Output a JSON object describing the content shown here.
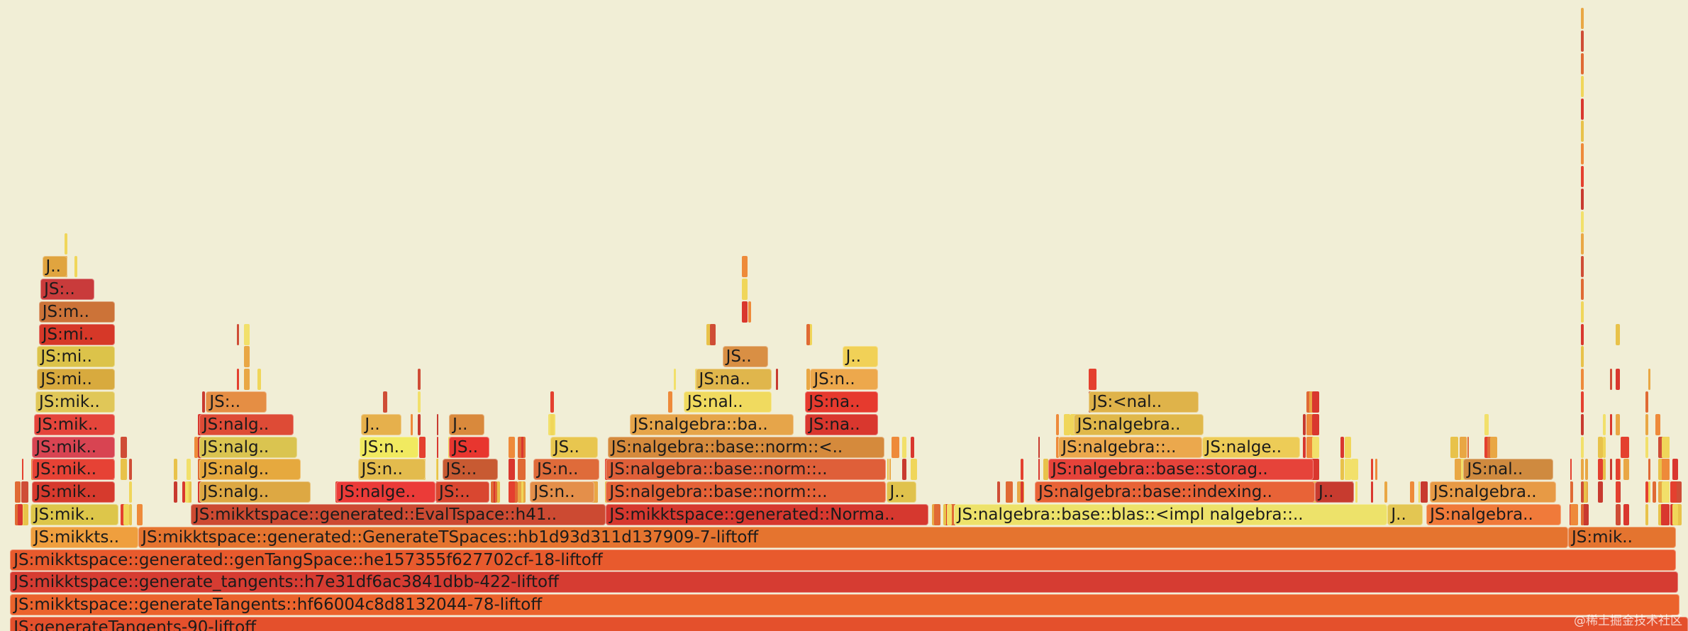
{
  "chart_data": {
    "type": "flamegraph",
    "title": "",
    "orientation": "icicle-bottom-up",
    "frames": [
      {
        "depth": 0,
        "start": 0.006,
        "end": 1.0,
        "label": "JS:generateTangents-90-liftoff",
        "color": "#e4502c"
      },
      {
        "depth": 1,
        "start": 0.006,
        "end": 0.995,
        "label": "JS:mikktspace::generateTangents::hf66004c8d8132044-78-liftoff",
        "color": "#eb632c"
      },
      {
        "depth": 2,
        "start": 0.006,
        "end": 0.994,
        "label": "JS:mikktspace::generate_tangents::h7e31df6ac3841dbb-422-liftoff",
        "color": "#d63c32"
      },
      {
        "depth": 3,
        "start": 0.006,
        "end": 0.993,
        "label": "JS:mikktspace::generated::genTangSpace::he157355f627702cf-18-liftoff",
        "color": "#e85a2d"
      },
      {
        "depth": 4,
        "start": 0.018,
        "end": 0.082,
        "label": "JS:mikkts..",
        "color": "#ef9f3e"
      },
      {
        "depth": 4,
        "start": 0.082,
        "end": 0.929,
        "label": "JS:mikktspace::generated::GenerateTSpaces::hb1d93d311d137909-7-liftoff",
        "color": "#e5742f"
      },
      {
        "depth": 4,
        "start": 0.929,
        "end": 0.993,
        "label": "JS:mik..",
        "color": "#e4742f"
      },
      {
        "depth": 5,
        "start": 0.018,
        "end": 0.07,
        "label": "JS:mik..",
        "color": "#ddc64a"
      },
      {
        "depth": 5,
        "start": 0.113,
        "end": 0.359,
        "label": "JS:mikktspace::generated::EvalTspace::h41..",
        "color": "#cc4a32"
      },
      {
        "depth": 5,
        "start": 0.359,
        "end": 0.55,
        "label": "JS:mikktspace::generated::Norma..",
        "color": "#d6382f"
      },
      {
        "depth": 5,
        "start": 0.565,
        "end": 0.822,
        "label": "JS:nalgebra::base::blas::<impl nalgebra::..",
        "color": "#ede26a"
      },
      {
        "depth": 5,
        "start": 0.822,
        "end": 0.843,
        "label": "J..",
        "color": "#e3c652"
      },
      {
        "depth": 5,
        "start": 0.845,
        "end": 0.925,
        "label": "JS:nalgebra..",
        "color": "#f07a3a"
      },
      {
        "depth": 6,
        "start": 0.019,
        "end": 0.068,
        "label": "JS:mik..",
        "color": "#d63a2d"
      },
      {
        "depth": 6,
        "start": 0.118,
        "end": 0.184,
        "label": "JS:nalg..",
        "color": "#dda843"
      },
      {
        "depth": 6,
        "start": 0.199,
        "end": 0.258,
        "label": "JS:nalge..",
        "color": "#eb3b38"
      },
      {
        "depth": 6,
        "start": 0.258,
        "end": 0.29,
        "label": "JS:..",
        "color": "#d94730"
      },
      {
        "depth": 6,
        "start": 0.314,
        "end": 0.352,
        "label": "JS:n..",
        "color": "#e48f4a"
      },
      {
        "depth": 6,
        "start": 0.359,
        "end": 0.525,
        "label": "JS:nalgebra::base::norm::..",
        "color": "#e46237"
      },
      {
        "depth": 6,
        "start": 0.525,
        "end": 0.543,
        "label": "J..",
        "color": "#e0c24c"
      },
      {
        "depth": 6,
        "start": 0.613,
        "end": 0.779,
        "label": "JS:nalgebra::base::indexing..",
        "color": "#e86337"
      },
      {
        "depth": 6,
        "start": 0.779,
        "end": 0.802,
        "label": "J..",
        "color": "#c73b2f"
      },
      {
        "depth": 6,
        "start": 0.847,
        "end": 0.922,
        "label": "JS:nalgebra..",
        "color": "#e79a45"
      },
      {
        "depth": 7,
        "start": 0.019,
        "end": 0.068,
        "label": "JS:mik..",
        "color": "#e64235"
      },
      {
        "depth": 7,
        "start": 0.118,
        "end": 0.178,
        "label": "JS:nalg..",
        "color": "#e6a93e"
      },
      {
        "depth": 7,
        "start": 0.212,
        "end": 0.252,
        "label": "JS:n..",
        "color": "#e3bb4d"
      },
      {
        "depth": 7,
        "start": 0.262,
        "end": 0.295,
        "label": "JS:..",
        "color": "#c85a32"
      },
      {
        "depth": 7,
        "start": 0.316,
        "end": 0.355,
        "label": "JS:n..",
        "color": "#df6b3a"
      },
      {
        "depth": 7,
        "start": 0.359,
        "end": 0.525,
        "label": "JS:nalgebra::base::norm::..",
        "color": "#df5f39"
      },
      {
        "depth": 7,
        "start": 0.621,
        "end": 0.778,
        "label": "JS:nalgebra::base::storag..",
        "color": "#e6433a"
      },
      {
        "depth": 7,
        "start": 0.867,
        "end": 0.92,
        "label": "JS:nal..",
        "color": "#cf8a3f"
      },
      {
        "depth": 8,
        "start": 0.019,
        "end": 0.068,
        "label": "JS:mik..",
        "color": "#d84452"
      },
      {
        "depth": 8,
        "start": 0.118,
        "end": 0.176,
        "label": "JS:nalg..",
        "color": "#dac450"
      },
      {
        "depth": 8,
        "start": 0.213,
        "end": 0.248,
        "label": "JS:n..",
        "color": "#f1ea60"
      },
      {
        "depth": 8,
        "start": 0.266,
        "end": 0.29,
        "label": "JS..",
        "color": "#e8362f"
      },
      {
        "depth": 8,
        "start": 0.326,
        "end": 0.354,
        "label": "JS..",
        "color": "#e8c64f"
      },
      {
        "depth": 8,
        "start": 0.36,
        "end": 0.524,
        "label": "JS:nalgebra::base::norm::<..",
        "color": "#d58a3c"
      },
      {
        "depth": 8,
        "start": 0.627,
        "end": 0.712,
        "label": "JS:nalgebra::..",
        "color": "#eba84d"
      },
      {
        "depth": 8,
        "start": 0.712,
        "end": 0.77,
        "label": "JS:nalge..",
        "color": "#edcc57"
      },
      {
        "depth": 9,
        "start": 0.02,
        "end": 0.068,
        "label": "JS:mik..",
        "color": "#e4453b"
      },
      {
        "depth": 9,
        "start": 0.118,
        "end": 0.174,
        "label": "JS:nalg..",
        "color": "#de4b36"
      },
      {
        "depth": 9,
        "start": 0.214,
        "end": 0.238,
        "label": "J..",
        "color": "#e6b04c"
      },
      {
        "depth": 9,
        "start": 0.266,
        "end": 0.287,
        "label": "J..",
        "color": "#d9893c"
      },
      {
        "depth": 9,
        "start": 0.373,
        "end": 0.47,
        "label": "JS:nalgebra::ba..",
        "color": "#e6a54a"
      },
      {
        "depth": 9,
        "start": 0.477,
        "end": 0.52,
        "label": "JS:na..",
        "color": "#d9372e"
      },
      {
        "depth": 9,
        "start": 0.636,
        "end": 0.713,
        "label": "JS:nalgebra..",
        "color": "#e0b84a"
      },
      {
        "depth": 10,
        "start": 0.021,
        "end": 0.068,
        "label": "JS:mik..",
        "color": "#e0c758"
      },
      {
        "depth": 10,
        "start": 0.122,
        "end": 0.158,
        "label": "JS:..",
        "color": "#e58e44"
      },
      {
        "depth": 10,
        "start": 0.405,
        "end": 0.457,
        "label": "JS:nal..",
        "color": "#f0da5f"
      },
      {
        "depth": 10,
        "start": 0.477,
        "end": 0.52,
        "label": "JS:na..",
        "color": "#e63a2e"
      },
      {
        "depth": 10,
        "start": 0.645,
        "end": 0.71,
        "label": "JS:<nal..",
        "color": "#dfb34a"
      },
      {
        "depth": 11,
        "start": 0.022,
        "end": 0.068,
        "label": "JS:mi..",
        "color": "#d8aa3e"
      },
      {
        "depth": 11,
        "start": 0.412,
        "end": 0.457,
        "label": "JS:na..",
        "color": "#e0b64c"
      },
      {
        "depth": 11,
        "start": 0.48,
        "end": 0.52,
        "label": "JS:n..",
        "color": "#eda84c"
      },
      {
        "depth": 12,
        "start": 0.022,
        "end": 0.068,
        "label": "JS:mi..",
        "color": "#dcc34a"
      },
      {
        "depth": 12,
        "start": 0.428,
        "end": 0.455,
        "label": "JS..",
        "color": "#d98f44"
      },
      {
        "depth": 12,
        "start": 0.499,
        "end": 0.52,
        "label": "J..",
        "color": "#f1d157"
      },
      {
        "depth": 13,
        "start": 0.023,
        "end": 0.068,
        "label": "JS:mi..",
        "color": "#d63828"
      },
      {
        "depth": 14,
        "start": 0.023,
        "end": 0.068,
        "label": "JS:m..",
        "color": "#cc7338"
      },
      {
        "depth": 15,
        "start": 0.024,
        "end": 0.056,
        "label": "JS:..",
        "color": "#c93b3b"
      },
      {
        "depth": 16,
        "start": 0.025,
        "end": 0.04,
        "label": "J..",
        "color": "#e0a43f"
      }
    ]
  }
}
